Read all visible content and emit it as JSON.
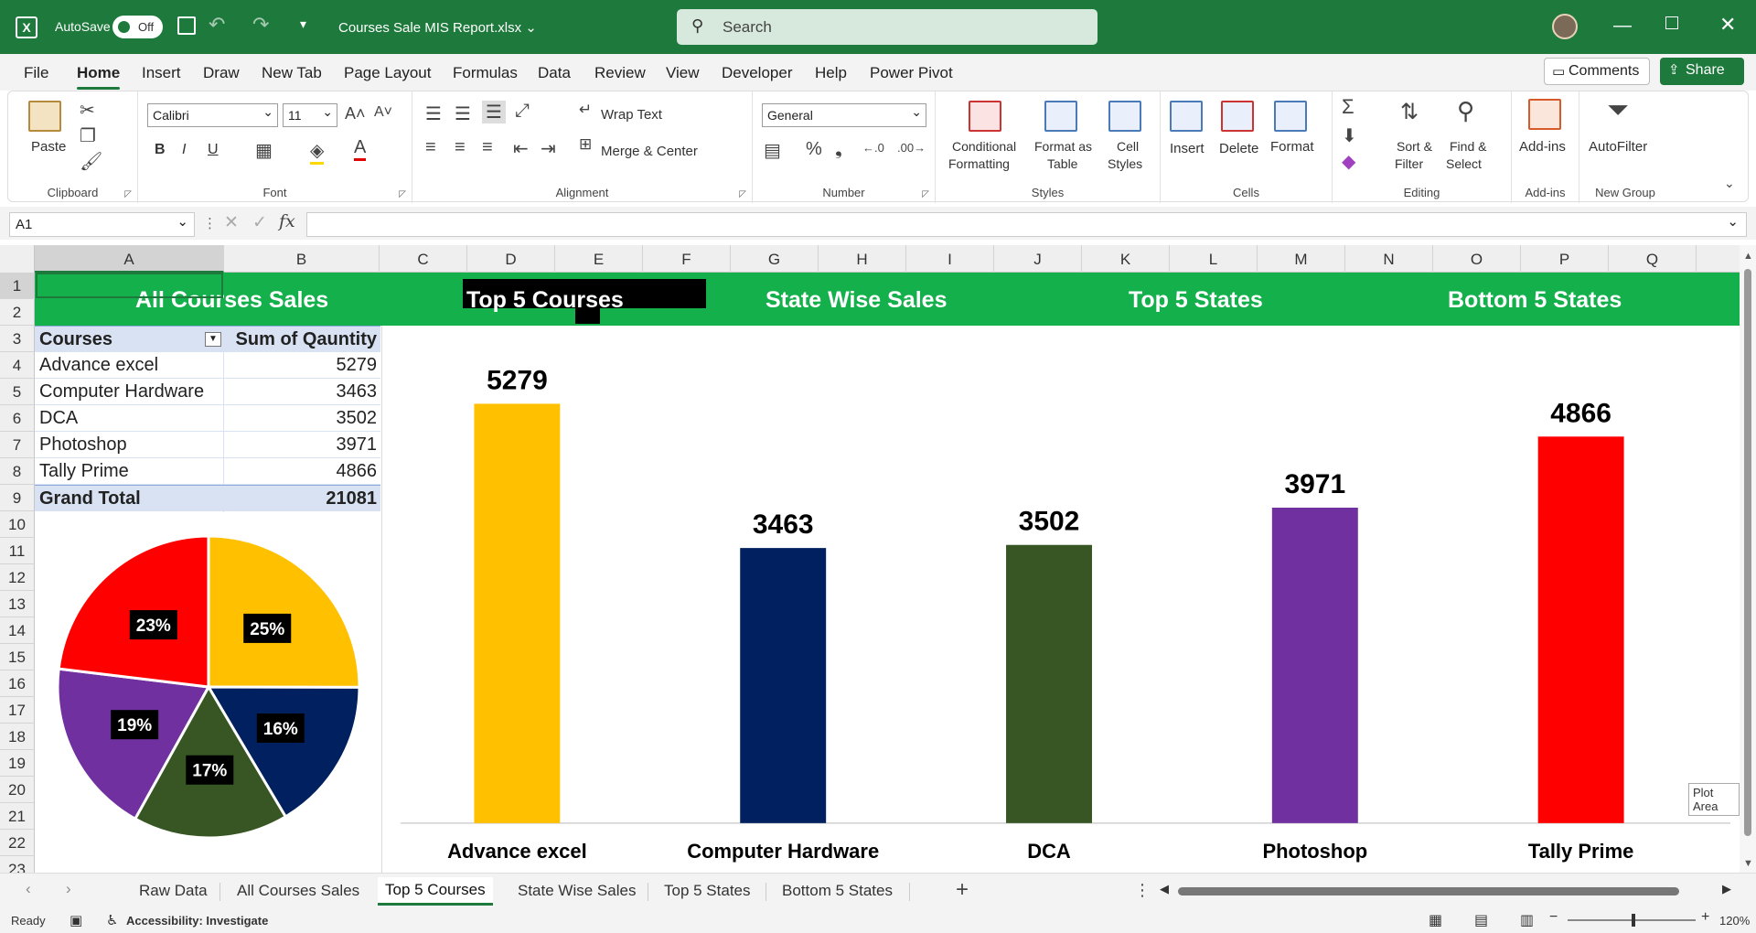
{
  "titlebar": {
    "autosave_label": "AutoSave",
    "autosave_state": "Off",
    "file_title": "Courses Sale MIS Report.xlsx",
    "search_placeholder": "Search"
  },
  "menu": {
    "tabs": [
      "File",
      "Home",
      "Insert",
      "Draw",
      "New Tab",
      "Page Layout",
      "Formulas",
      "Data",
      "Review",
      "View",
      "Developer",
      "Help",
      "Power Pivot"
    ],
    "active": "Home",
    "comments_label": "Comments",
    "share_label": "Share"
  },
  "ribbon": {
    "clipboard": {
      "paste": "Paste",
      "label": "Clipboard"
    },
    "font": {
      "name": "Calibri",
      "size": "11",
      "label": "Font",
      "bold": "B",
      "italic": "I",
      "underline": "U"
    },
    "alignment": {
      "wrap_text": "Wrap Text",
      "merge_center": "Merge & Center",
      "label": "Alignment"
    },
    "number": {
      "format": "General",
      "label": "Number"
    },
    "styles": {
      "conditional_1": "Conditional",
      "conditional_2": "Formatting",
      "format_table_1": "Format as",
      "format_table_2": "Table",
      "cell_styles_1": "Cell",
      "cell_styles_2": "Styles",
      "label": "Styles"
    },
    "cells": {
      "insert": "Insert",
      "delete": "Delete",
      "format": "Format",
      "label": "Cells"
    },
    "editing": {
      "sort_1": "Sort &",
      "sort_2": "Filter",
      "find_1": "Find &",
      "find_2": "Select",
      "label": "Editing"
    },
    "addins": {
      "addins": "Add-ins",
      "label": "Add-ins"
    },
    "newgroup": {
      "autofilter": "AutoFilter",
      "label": "New Group"
    }
  },
  "formula_bar": {
    "name_box": "A1",
    "fx": "fx",
    "value": ""
  },
  "grid": {
    "columns": [
      "A",
      "B",
      "C",
      "D",
      "E",
      "F",
      "G",
      "H",
      "I",
      "J",
      "K",
      "L",
      "M",
      "N",
      "O",
      "P",
      "Q"
    ],
    "rows": [
      "1",
      "2",
      "3",
      "4",
      "5",
      "6",
      "7",
      "8",
      "9",
      "10",
      "11",
      "12",
      "13",
      "14",
      "15",
      "16",
      "17",
      "18",
      "19",
      "20",
      "21",
      "22",
      "23"
    ],
    "selected_cell": "A1"
  },
  "banner": {
    "items": [
      "All Courses Sales",
      "Top 5 Courses",
      "State Wise Sales",
      "Top 5 States",
      "Bottom 5 States"
    ],
    "active": "Top 5 Courses"
  },
  "pivot": {
    "header_courses": "Courses",
    "header_sum": "Sum of Qauntity",
    "rows": [
      {
        "course": "Advance excel",
        "qty": "5279"
      },
      {
        "course": "Computer Hardware",
        "qty": "3463"
      },
      {
        "course": "DCA",
        "qty": "3502"
      },
      {
        "course": "Photoshop",
        "qty": "3971"
      },
      {
        "course": "Tally Prime",
        "qty": "4866"
      }
    ],
    "total_label": "Grand Total",
    "total_value": "21081"
  },
  "chart_data": [
    {
      "type": "pie",
      "categories": [
        "Advance excel",
        "Computer Hardware",
        "DCA",
        "Photoshop",
        "Tally Prime"
      ],
      "values": [
        5279,
        3463,
        3502,
        3971,
        4866
      ],
      "labels": [
        "25%",
        "16%",
        "17%",
        "19%",
        "23%"
      ],
      "colors": [
        "#FFC000",
        "#002060",
        "#375623",
        "#7030A0",
        "#FF0000"
      ],
      "title": "",
      "legend": "none"
    },
    {
      "type": "bar",
      "categories": [
        "Advance excel",
        "Computer Hardware",
        "DCA",
        "Photoshop",
        "Tally Prime"
      ],
      "values": [
        5279,
        3463,
        3502,
        3971,
        4866
      ],
      "colors": [
        "#FFC000",
        "#002060",
        "#375623",
        "#7030A0",
        "#FF0000"
      ],
      "title": "",
      "xlabel": "",
      "ylabel": "",
      "ylim": [
        0,
        5800
      ],
      "grid": false,
      "legend": "none",
      "data_labels": true
    }
  ],
  "tooltip": "Plot Area",
  "sheets": {
    "tabs": [
      "Raw Data",
      "All Courses Sales",
      "Top 5 Courses",
      "State Wise Sales",
      "Top 5 States",
      "Bottom 5 States"
    ],
    "active": "Top 5 Courses"
  },
  "status": {
    "ready": "Ready",
    "accessibility": "Accessibility: Investigate",
    "zoom": "120%"
  }
}
